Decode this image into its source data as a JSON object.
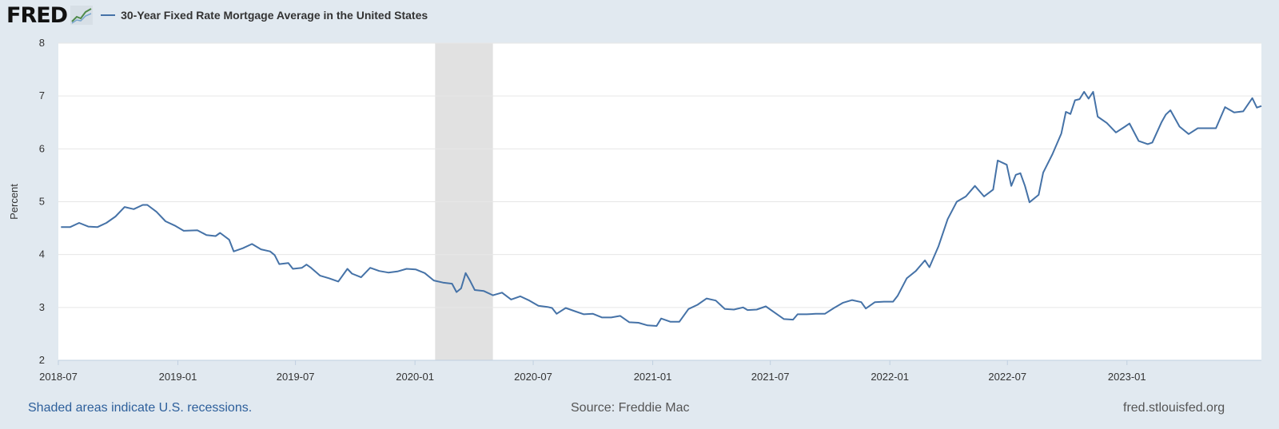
{
  "header": {
    "logo_text": "FRED",
    "logo_icon": "line-graph-icon",
    "legend_label": "30-Year Fixed Rate Mortgage Average in the United States"
  },
  "footer": {
    "recession_note": "Shaded areas indicate U.S. recessions.",
    "source": "Source: Freddie Mac",
    "site": "fred.stlouisfed.org"
  },
  "colors": {
    "background": "#e1e9f0",
    "plot": "#ffffff",
    "series": "#4572a7",
    "recession": "#e1e1e1",
    "grid": "#e6e6e6"
  },
  "chart_data": {
    "type": "line",
    "title": "",
    "xlabel": "",
    "ylabel": "Percent",
    "ylim": [
      2,
      8
    ],
    "xlim": [
      "2018-07-01",
      "2023-07-27"
    ],
    "yticks": [
      2,
      3,
      4,
      5,
      6,
      7,
      8
    ],
    "xticks": [
      "2018-07",
      "2019-01",
      "2019-07",
      "2020-01",
      "2020-07",
      "2021-01",
      "2021-07",
      "2022-01",
      "2022-07",
      "2023-01"
    ],
    "grid": true,
    "recessions": [
      {
        "start": "2020-02-01",
        "end": "2020-04-30"
      }
    ],
    "series": [
      {
        "name": "30-Year Fixed Rate Mortgage Average in the United States",
        "points": [
          [
            "2018-07-05",
            4.52
          ],
          [
            "2018-07-19",
            4.52
          ],
          [
            "2018-08-02",
            4.6
          ],
          [
            "2018-08-16",
            4.53
          ],
          [
            "2018-08-30",
            4.52
          ],
          [
            "2018-09-13",
            4.6
          ],
          [
            "2018-09-27",
            4.72
          ],
          [
            "2018-10-11",
            4.9
          ],
          [
            "2018-10-25",
            4.86
          ],
          [
            "2018-11-08",
            4.94
          ],
          [
            "2018-11-15",
            4.94
          ],
          [
            "2018-11-29",
            4.81
          ],
          [
            "2018-12-13",
            4.63
          ],
          [
            "2018-12-27",
            4.55
          ],
          [
            "2019-01-10",
            4.45
          ],
          [
            "2019-01-31",
            4.46
          ],
          [
            "2019-02-14",
            4.37
          ],
          [
            "2019-02-28",
            4.35
          ],
          [
            "2019-03-07",
            4.41
          ],
          [
            "2019-03-21",
            4.28
          ],
          [
            "2019-03-28",
            4.06
          ],
          [
            "2019-04-11",
            4.12
          ],
          [
            "2019-04-25",
            4.2
          ],
          [
            "2019-05-09",
            4.1
          ],
          [
            "2019-05-23",
            4.06
          ],
          [
            "2019-05-30",
            3.99
          ],
          [
            "2019-06-06",
            3.82
          ],
          [
            "2019-06-20",
            3.84
          ],
          [
            "2019-06-27",
            3.73
          ],
          [
            "2019-07-11",
            3.75
          ],
          [
            "2019-07-18",
            3.81
          ],
          [
            "2019-07-25",
            3.75
          ],
          [
            "2019-08-08",
            3.6
          ],
          [
            "2019-08-22",
            3.55
          ],
          [
            "2019-09-05",
            3.49
          ],
          [
            "2019-09-19",
            3.73
          ],
          [
            "2019-09-26",
            3.64
          ],
          [
            "2019-10-10",
            3.57
          ],
          [
            "2019-10-24",
            3.75
          ],
          [
            "2019-11-07",
            3.69
          ],
          [
            "2019-11-21",
            3.66
          ],
          [
            "2019-12-05",
            3.68
          ],
          [
            "2019-12-19",
            3.73
          ],
          [
            "2020-01-02",
            3.72
          ],
          [
            "2020-01-16",
            3.65
          ],
          [
            "2020-01-30",
            3.51
          ],
          [
            "2020-02-13",
            3.47
          ],
          [
            "2020-02-27",
            3.45
          ],
          [
            "2020-03-05",
            3.29
          ],
          [
            "2020-03-12",
            3.36
          ],
          [
            "2020-03-19",
            3.65
          ],
          [
            "2020-03-26",
            3.5
          ],
          [
            "2020-04-02",
            3.33
          ],
          [
            "2020-04-16",
            3.31
          ],
          [
            "2020-04-30",
            3.23
          ],
          [
            "2020-05-14",
            3.28
          ],
          [
            "2020-05-28",
            3.15
          ],
          [
            "2020-06-11",
            3.21
          ],
          [
            "2020-06-25",
            3.13
          ],
          [
            "2020-07-09",
            3.03
          ],
          [
            "2020-07-23",
            3.01
          ],
          [
            "2020-07-30",
            2.99
          ],
          [
            "2020-08-06",
            2.88
          ],
          [
            "2020-08-20",
            2.99
          ],
          [
            "2020-09-03",
            2.93
          ],
          [
            "2020-09-17",
            2.87
          ],
          [
            "2020-10-01",
            2.88
          ],
          [
            "2020-10-15",
            2.81
          ],
          [
            "2020-10-29",
            2.81
          ],
          [
            "2020-11-12",
            2.84
          ],
          [
            "2020-11-26",
            2.72
          ],
          [
            "2020-12-10",
            2.71
          ],
          [
            "2020-12-24",
            2.66
          ],
          [
            "2021-01-07",
            2.65
          ],
          [
            "2021-01-14",
            2.79
          ],
          [
            "2021-01-28",
            2.73
          ],
          [
            "2021-02-11",
            2.73
          ],
          [
            "2021-02-25",
            2.97
          ],
          [
            "2021-03-11",
            3.05
          ],
          [
            "2021-03-25",
            3.17
          ],
          [
            "2021-04-08",
            3.13
          ],
          [
            "2021-04-22",
            2.97
          ],
          [
            "2021-05-06",
            2.96
          ],
          [
            "2021-05-20",
            3.0
          ],
          [
            "2021-05-27",
            2.95
          ],
          [
            "2021-06-10",
            2.96
          ],
          [
            "2021-06-24",
            3.02
          ],
          [
            "2021-07-08",
            2.9
          ],
          [
            "2021-07-22",
            2.78
          ],
          [
            "2021-08-05",
            2.77
          ],
          [
            "2021-08-12",
            2.87
          ],
          [
            "2021-08-26",
            2.87
          ],
          [
            "2021-09-09",
            2.88
          ],
          [
            "2021-09-23",
            2.88
          ],
          [
            "2021-10-07",
            2.99
          ],
          [
            "2021-10-21",
            3.09
          ],
          [
            "2021-11-04",
            3.14
          ],
          [
            "2021-11-18",
            3.1
          ],
          [
            "2021-11-25",
            2.98
          ],
          [
            "2021-12-09",
            3.1
          ],
          [
            "2021-12-23",
            3.11
          ],
          [
            "2022-01-06",
            3.11
          ],
          [
            "2022-01-13",
            3.22
          ],
          [
            "2022-01-27",
            3.55
          ],
          [
            "2022-02-10",
            3.69
          ],
          [
            "2022-02-24",
            3.89
          ],
          [
            "2022-03-03",
            3.76
          ],
          [
            "2022-03-17",
            4.16
          ],
          [
            "2022-03-31",
            4.67
          ],
          [
            "2022-04-14",
            5.0
          ],
          [
            "2022-04-28",
            5.1
          ],
          [
            "2022-05-12",
            5.3
          ],
          [
            "2022-05-26",
            5.1
          ],
          [
            "2022-06-09",
            5.23
          ],
          [
            "2022-06-16",
            5.78
          ],
          [
            "2022-06-30",
            5.7
          ],
          [
            "2022-07-07",
            5.3
          ],
          [
            "2022-07-14",
            5.51
          ],
          [
            "2022-07-21",
            5.54
          ],
          [
            "2022-07-28",
            5.3
          ],
          [
            "2022-08-04",
            4.99
          ],
          [
            "2022-08-18",
            5.13
          ],
          [
            "2022-08-25",
            5.55
          ],
          [
            "2022-09-08",
            5.89
          ],
          [
            "2022-09-22",
            6.29
          ],
          [
            "2022-09-29",
            6.7
          ],
          [
            "2022-10-06",
            6.66
          ],
          [
            "2022-10-13",
            6.92
          ],
          [
            "2022-10-20",
            6.94
          ],
          [
            "2022-10-27",
            7.08
          ],
          [
            "2022-11-03",
            6.95
          ],
          [
            "2022-11-10",
            7.08
          ],
          [
            "2022-11-17",
            6.61
          ],
          [
            "2022-12-01",
            6.49
          ],
          [
            "2022-12-15",
            6.31
          ],
          [
            "2022-12-29",
            6.42
          ],
          [
            "2023-01-05",
            6.48
          ],
          [
            "2023-01-19",
            6.15
          ],
          [
            "2023-02-02",
            6.09
          ],
          [
            "2023-02-09",
            6.12
          ],
          [
            "2023-02-23",
            6.5
          ],
          [
            "2023-03-02",
            6.65
          ],
          [
            "2023-03-09",
            6.73
          ],
          [
            "2023-03-23",
            6.42
          ],
          [
            "2023-04-06",
            6.28
          ],
          [
            "2023-04-20",
            6.39
          ],
          [
            "2023-05-04",
            6.39
          ],
          [
            "2023-05-18",
            6.39
          ],
          [
            "2023-06-01",
            6.79
          ],
          [
            "2023-06-15",
            6.69
          ],
          [
            "2023-06-29",
            6.71
          ],
          [
            "2023-07-13",
            6.96
          ],
          [
            "2023-07-20",
            6.78
          ],
          [
            "2023-07-27",
            6.81
          ]
        ]
      }
    ]
  }
}
